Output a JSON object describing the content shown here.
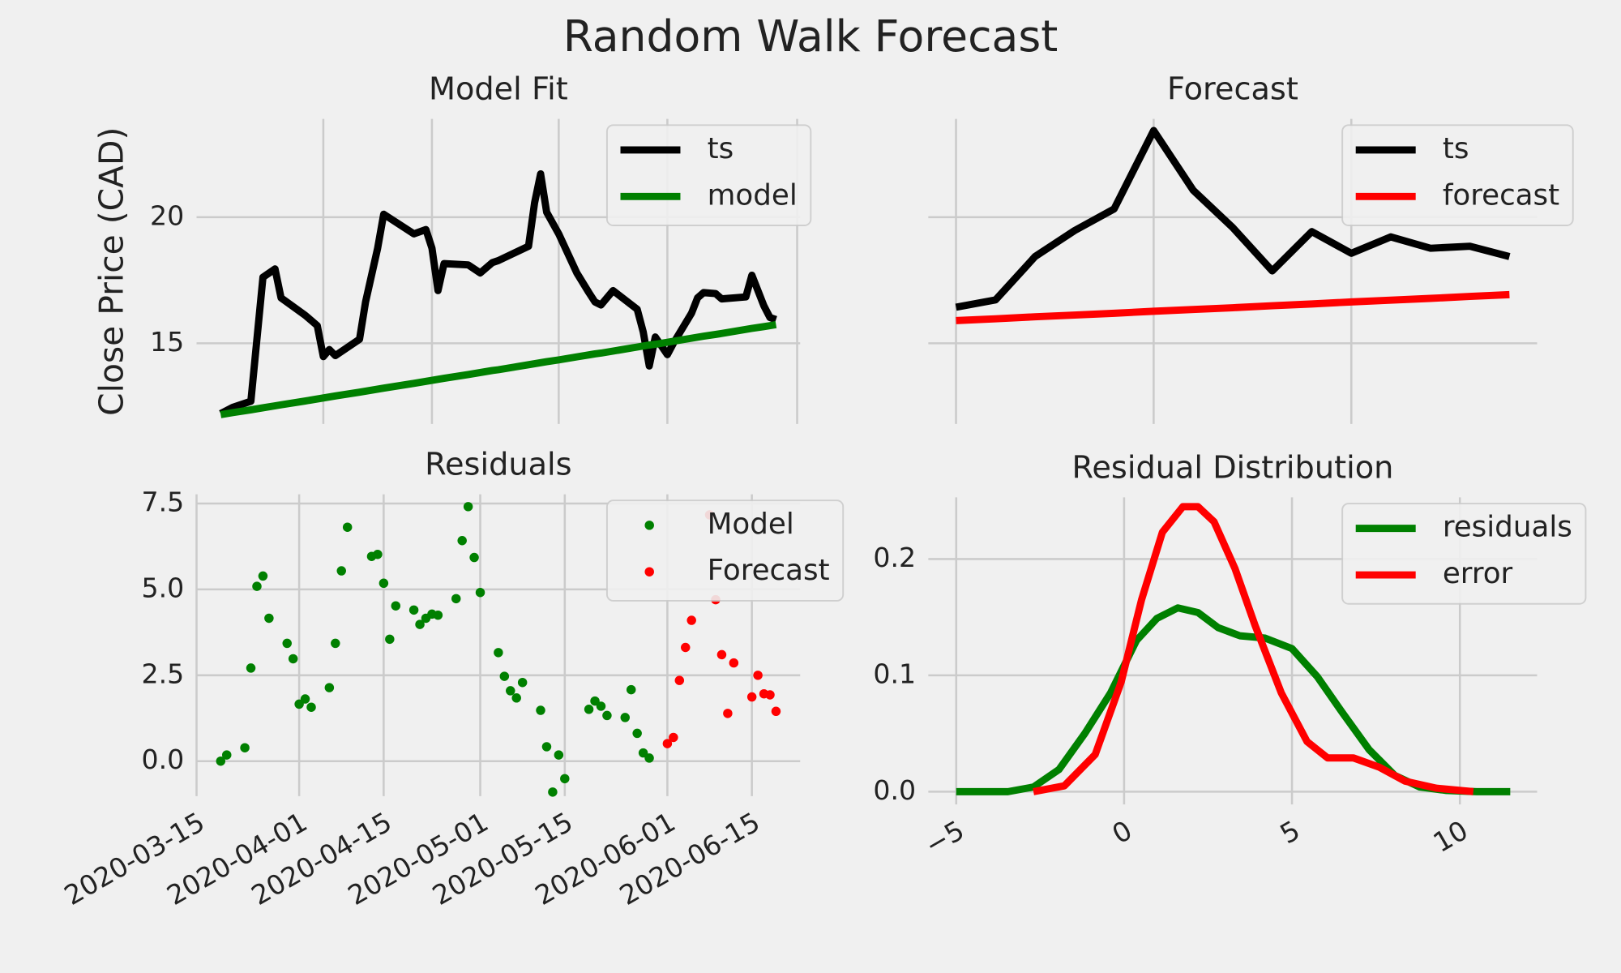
{
  "title": "Random Walk Forecast",
  "chart_data": [
    {
      "type": "line",
      "title": "Model Fit",
      "ylabel": "Close Price (CAD)",
      "xlim": [
        0,
        100
      ],
      "xticks": [
        21,
        39,
        60,
        78,
        99.5
      ],
      "show_xtick_labels": false,
      "ylim": [
        11.8,
        23.9
      ],
      "yticks": [
        15,
        20
      ],
      "grid": true,
      "legend": "upper right",
      "series": [
        {
          "name": "ts",
          "color": "#000000",
          "x": [
            4,
            6,
            9,
            11,
            13,
            14,
            18,
            20,
            21,
            22,
            23,
            27,
            28,
            30,
            31,
            36,
            38,
            39,
            40,
            41,
            45,
            47,
            49,
            50,
            55,
            56,
            57,
            58,
            60,
            63,
            65,
            66,
            67,
            69,
            73,
            74,
            75,
            76,
            78,
            79,
            82,
            83,
            84,
            86,
            87,
            91,
            92,
            94,
            95,
            96
          ],
          "values": [
            12.21,
            12.46,
            12.7,
            17.62,
            17.95,
            16.8,
            16.11,
            15.7,
            14.47,
            14.75,
            14.51,
            15.16,
            16.64,
            18.77,
            20.12,
            19.34,
            19.51,
            18.77,
            17.09,
            18.16,
            18.11,
            17.79,
            18.2,
            18.28,
            18.85,
            20.57,
            21.72,
            20.2,
            19.34,
            17.79,
            17.01,
            16.64,
            16.52,
            17.09,
            16.35,
            15.45,
            14.1,
            15.25,
            14.55,
            15.0,
            16.19,
            16.8,
            17.01,
            16.97,
            16.76,
            16.84,
            17.7,
            16.48,
            16.02,
            15.94
          ]
        },
        {
          "name": "model",
          "color": "#008000",
          "x": [
            4,
            6,
            9,
            11,
            13,
            14,
            18,
            20,
            21,
            22,
            23,
            27,
            28,
            30,
            31,
            36,
            38,
            39,
            40,
            41,
            45,
            47,
            49,
            50,
            55,
            56,
            57,
            58,
            60,
            63,
            65,
            66,
            67,
            69,
            73,
            74,
            75,
            76,
            78,
            79,
            82,
            83,
            84,
            86,
            87,
            91,
            92,
            94,
            95,
            96
          ],
          "values": [
            12.17,
            12.25,
            12.36,
            12.44,
            12.52,
            12.56,
            12.71,
            12.79,
            12.83,
            12.87,
            12.91,
            13.06,
            13.1,
            13.18,
            13.22,
            13.41,
            13.49,
            13.53,
            13.57,
            13.61,
            13.76,
            13.84,
            13.92,
            13.95,
            14.15,
            14.19,
            14.23,
            14.27,
            14.34,
            14.46,
            14.54,
            14.58,
            14.61,
            14.69,
            14.85,
            14.89,
            14.93,
            14.96,
            15.04,
            15.08,
            15.2,
            15.24,
            15.28,
            15.35,
            15.39,
            15.55,
            15.59,
            15.66,
            15.7,
            15.74
          ]
        }
      ]
    },
    {
      "type": "line",
      "title": "Forecast",
      "xlim": [
        -0.7,
        14.7
      ],
      "xticks": [
        0,
        5,
        10
      ],
      "show_xtick_labels": false,
      "ylim": [
        11.8,
        23.9
      ],
      "yticks": [
        15,
        20
      ],
      "show_ytick_labels": false,
      "grid": true,
      "legend": "upper right",
      "series": [
        {
          "name": "ts",
          "color": "#000000",
          "x": [
            0,
            1,
            2,
            3,
            4,
            5,
            6,
            7,
            8,
            9,
            10,
            11,
            12,
            13,
            14
          ],
          "values": [
            16.43,
            16.72,
            18.44,
            19.47,
            20.33,
            23.44,
            21.07,
            19.59,
            17.87,
            19.43,
            18.57,
            19.22,
            18.77,
            18.85,
            18.44
          ]
        },
        {
          "name": "forecast",
          "color": "#ff0000",
          "x": [
            0,
            1,
            2,
            3,
            4,
            5,
            6,
            7,
            8,
            9,
            10,
            11,
            12,
            13,
            14
          ],
          "values": [
            15.9,
            15.97,
            16.05,
            16.12,
            16.19,
            16.27,
            16.34,
            16.41,
            16.49,
            16.56,
            16.64,
            16.71,
            16.78,
            16.86,
            16.93
          ]
        }
      ]
    },
    {
      "type": "scatter",
      "title": "Residuals",
      "xlim": [
        0,
        100
      ],
      "xticks": [
        {
          "value": 0,
          "label": "2020-03-15"
        },
        {
          "value": 17,
          "label": "2020-04-01"
        },
        {
          "value": 31,
          "label": "2020-04-15"
        },
        {
          "value": 47,
          "label": "2020-05-01"
        },
        {
          "value": 61,
          "label": "2020-05-15"
        },
        {
          "value": 78,
          "label": "2020-06-01"
        },
        {
          "value": 92,
          "label": "2020-06-15"
        }
      ],
      "ylim": [
        -1.02,
        7.77
      ],
      "yticks": [
        {
          "value": 0,
          "label": "0.0"
        },
        {
          "value": 2.5,
          "label": "2.5"
        },
        {
          "value": 5,
          "label": "5.0"
        },
        {
          "value": 7.5,
          "label": "7.5"
        }
      ],
      "grid": true,
      "legend": "upper right",
      "series": [
        {
          "name": "Model",
          "color": "#008000",
          "x": [
            4,
            5,
            8,
            9,
            10,
            11,
            12,
            15,
            16,
            17,
            18,
            19,
            22,
            23,
            24,
            25,
            29,
            30,
            31,
            32,
            33,
            36,
            37,
            38,
            39,
            40,
            43,
            44,
            45,
            46,
            47,
            50,
            51,
            52,
            53,
            54,
            57,
            58,
            59,
            60,
            61,
            65,
            66,
            67,
            68,
            71,
            72,
            73,
            74,
            75
          ],
          "values": [
            0.0,
            0.18,
            0.39,
            2.71,
            5.09,
            5.39,
            4.16,
            3.43,
            2.98,
            1.66,
            1.81,
            1.57,
            2.14,
            3.43,
            5.54,
            6.81,
            5.96,
            6.02,
            5.18,
            3.55,
            4.52,
            4.4,
            3.98,
            4.16,
            4.28,
            4.25,
            4.73,
            6.42,
            7.41,
            5.93,
            4.91,
            3.16,
            2.47,
            2.05,
            1.84,
            2.29,
            1.48,
            0.42,
            -0.9,
            0.18,
            -0.51,
            1.51,
            1.75,
            1.6,
            1.33,
            1.27,
            2.08,
            0.81,
            0.24,
            0.09
          ]
        },
        {
          "name": "Forecast",
          "color": "#ff0000",
          "x": [
            78,
            79,
            80,
            81,
            82,
            85,
            86,
            87,
            88,
            89,
            92,
            93,
            94,
            95,
            96
          ],
          "values": [
            0.51,
            0.69,
            2.35,
            3.31,
            4.1,
            7.17,
            4.7,
            3.1,
            1.39,
            2.86,
            1.87,
            2.5,
            1.96,
            1.93,
            1.45
          ]
        }
      ]
    },
    {
      "type": "line",
      "title": "Residual Distribution",
      "xlim": [
        -5.83,
        12.3
      ],
      "xticks": [
        {
          "value": -5,
          "label": "−5"
        },
        0,
        5,
        10
      ],
      "ylim": [
        -0.011,
        0.253
      ],
      "yticks": [
        {
          "value": 0,
          "label": "0.0"
        },
        {
          "value": 0.1,
          "label": "0.1"
        },
        {
          "value": 0.2,
          "label": "0.2"
        }
      ],
      "grid": true,
      "legend": "upper right",
      "series": [
        {
          "name": "residuals",
          "color": "#008000",
          "x": [
            -5,
            -3.46,
            -2.7,
            -1.94,
            -1.17,
            -0.4,
            0.37,
            0.98,
            1.6,
            2.2,
            2.8,
            3.45,
            4.2,
            5,
            5.75,
            6.5,
            7.3,
            8.06,
            8.8,
            9.6,
            10.5,
            11.5
          ],
          "values": [
            0,
            0,
            0.004,
            0.019,
            0.05,
            0.085,
            0.13,
            0.149,
            0.158,
            0.154,
            0.141,
            0.134,
            0.132,
            0.123,
            0.099,
            0.068,
            0.036,
            0.014,
            0.004,
            0.001,
            0,
            0
          ]
        },
        {
          "name": "error",
          "color": "#ff0000",
          "x": [
            -2.7,
            -1.78,
            -0.86,
            -0.09,
            0.52,
            1.14,
            1.75,
            2.2,
            2.68,
            3.3,
            3.9,
            4.68,
            5.45,
            6.06,
            6.83,
            7.6,
            8.37,
            9.3,
            10.4
          ],
          "values": [
            0,
            0.005,
            0.032,
            0.094,
            0.165,
            0.223,
            0.245,
            0.245,
            0.232,
            0.192,
            0.143,
            0.085,
            0.043,
            0.029,
            0.029,
            0.021,
            0.009,
            0.003,
            0
          ]
        }
      ]
    }
  ]
}
